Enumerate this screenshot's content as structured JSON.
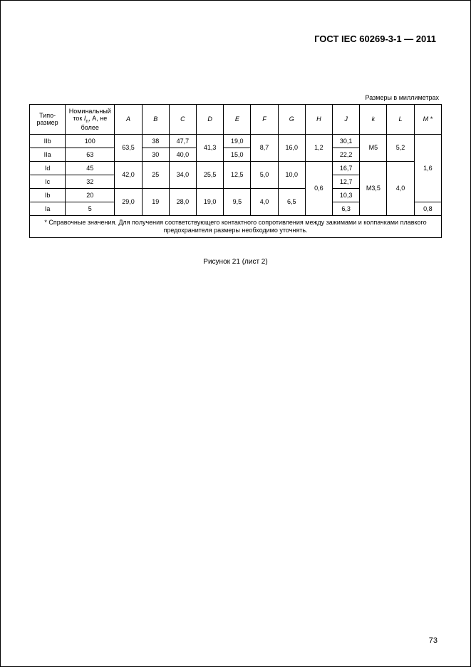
{
  "header": {
    "title": "ГОСТ IEC 60269-3-1 — 2011"
  },
  "units_label": "Размеры в миллиметрах",
  "caption": "Рисунок 21 (лист 2)",
  "page_number": "73",
  "table": {
    "headers": {
      "tipo": "Типо-\nразмер",
      "nominal_pre": "Номинальный ток ",
      "nominal_sym": "I",
      "nominal_sub": "n",
      "nominal_post": ", А, не более",
      "A": "A",
      "B": "B",
      "C": "C",
      "D": "D",
      "E": "E",
      "F": "F",
      "G": "G",
      "H": "H",
      "J": "J",
      "k": "k",
      "L": "L",
      "M": "M *"
    },
    "footnote": "*   Справочные значения. Для получения соответствующего контактного сопротивления между зажимами и колпачками плавкого предохранителя размеры необходимо уточнять.",
    "rows": {
      "r1": {
        "tipo": "IIb",
        "nom": "100",
        "B": "38",
        "C": "47,7",
        "E": "19,0",
        "J": "30,1"
      },
      "r2": {
        "tipo": "IIa",
        "nom": "63",
        "B": "30",
        "C": "40,0",
        "E": "15,0",
        "J": "22,2"
      },
      "r3": {
        "tipo": "Id",
        "nom": "45",
        "J": "16,7"
      },
      "r4": {
        "tipo": "Ic",
        "nom": "32",
        "J": "12,7"
      },
      "r5": {
        "tipo": "Ib",
        "nom": "20",
        "J": "10,3"
      },
      "r6": {
        "tipo": "Ia",
        "nom": "5",
        "J": "6,3",
        "M": "0,8"
      },
      "span12": {
        "A": "63,5",
        "D": "41,3",
        "F": "8,7",
        "G": "16,0",
        "H": "1,2",
        "k": "М5",
        "L": "5,2"
      },
      "span34": {
        "A": "42,0",
        "B": "25",
        "C": "34,0",
        "D": "25,5",
        "E": "12,5",
        "F": "5,0",
        "G": "10,0"
      },
      "span56": {
        "A": "29,0",
        "B": "19",
        "C": "28,0",
        "D": "19,0",
        "E": "9,5",
        "F": "4,0",
        "G": "6,5"
      },
      "span36_H": "0,6",
      "span36_k": "М3,5",
      "span36_L": "4,0",
      "span15_M": "1,6"
    }
  }
}
